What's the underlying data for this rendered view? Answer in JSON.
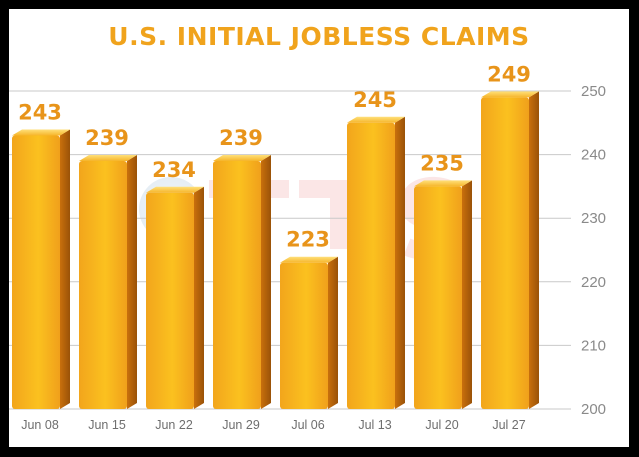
{
  "chart_data": {
    "type": "bar",
    "title": "U.S. INITIAL JOBLESS CLAIMS",
    "categories": [
      "Jun 08",
      "Jun 15",
      "Jun 22",
      "Jun 29",
      "Jul 06",
      "Jul 13",
      "Jul 20",
      "Jul 27"
    ],
    "values": [
      243,
      239,
      234,
      239,
      223,
      245,
      235,
      249
    ],
    "ylim": [
      200,
      250
    ],
    "yticks": [
      200,
      210,
      220,
      230,
      240,
      250
    ],
    "ytick_labels": [
      "200",
      "210",
      "220",
      "230",
      "240",
      "250"
    ],
    "yaxis_position": "right",
    "grid": true,
    "data_labels": true,
    "colors": {
      "bar_dark": "#e2860f",
      "bar_light": "#fcd31a",
      "label": "#e8941a",
      "title": "#f0a31c"
    }
  }
}
